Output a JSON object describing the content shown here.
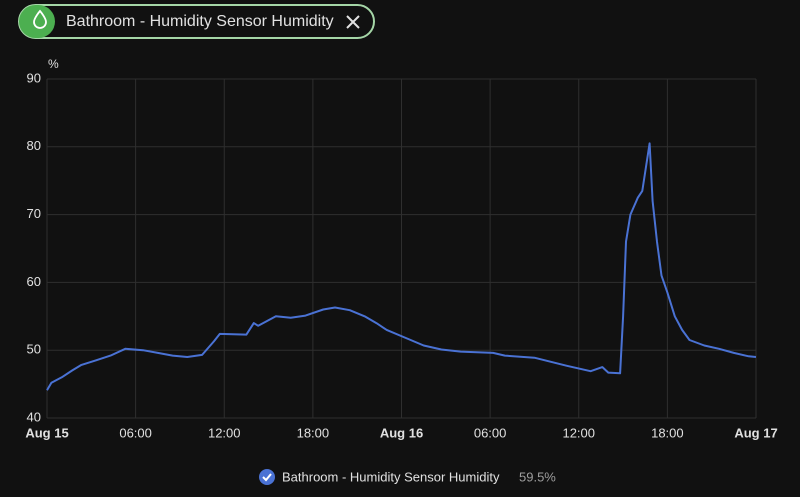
{
  "filter_chip": {
    "label": "Bathroom - Humidity Sensor Humidity"
  },
  "chart_data": {
    "type": "line",
    "y_label": "%",
    "x": [
      0,
      0.3,
      1,
      1.7,
      2.3,
      3.3,
      4.3,
      5.3,
      6.5,
      7.5,
      8.5,
      9.5,
      10.5,
      11.3,
      11.7,
      13.5,
      14,
      14.3,
      15.5,
      16.5,
      17.5,
      18.7,
      19.5,
      20.5,
      21.5,
      22.3,
      23,
      24.3,
      25.5,
      26.7,
      28,
      30.2,
      31,
      33,
      35.2,
      36.8,
      37.6,
      38,
      38.8,
      39,
      39.2,
      39.5,
      40,
      40.3,
      40.8,
      41,
      41.3,
      41.6,
      42,
      42.5,
      43,
      43.5,
      44.5,
      45.5,
      46.5,
      47.5,
      48
    ],
    "series": [
      {
        "name": "Bathroom - Humidity Sensor Humidity",
        "color": "#4a72d4",
        "values": [
          44.1,
          45.2,
          46,
          47,
          47.8,
          48.5,
          49.2,
          50.2,
          50,
          49.6,
          49.2,
          49,
          49.3,
          51.3,
          52.4,
          52.3,
          54,
          53.6,
          55,
          54.8,
          55.1,
          56,
          56.3,
          55.9,
          55,
          54,
          53,
          51.8,
          50.7,
          50.1,
          49.8,
          49.6,
          49.2,
          48.9,
          47.7,
          46.9,
          47.5,
          46.7,
          46.6,
          55,
          66,
          70,
          72.5,
          73.5,
          80.5,
          72,
          66,
          61,
          58.5,
          55,
          53,
          51.5,
          50.7,
          50.2,
          49.6,
          49.1,
          49
        ],
        "legend_state": "59.5%"
      }
    ],
    "xlim": [
      0,
      48
    ],
    "xticks": [
      {
        "value": 0,
        "label": "Aug 15"
      },
      {
        "value": 6,
        "label": "06:00"
      },
      {
        "value": 12,
        "label": "12:00"
      },
      {
        "value": 18,
        "label": "18:00"
      },
      {
        "value": 24,
        "label": "Aug 16"
      },
      {
        "value": 30,
        "label": "06:00"
      },
      {
        "value": 36,
        "label": "12:00"
      },
      {
        "value": 42,
        "label": "18:00"
      },
      {
        "value": 48,
        "label": "Aug 17"
      }
    ],
    "ylim": [
      40,
      90
    ],
    "yticks": [
      40,
      50,
      60,
      70,
      80,
      90
    ],
    "grid": true
  }
}
